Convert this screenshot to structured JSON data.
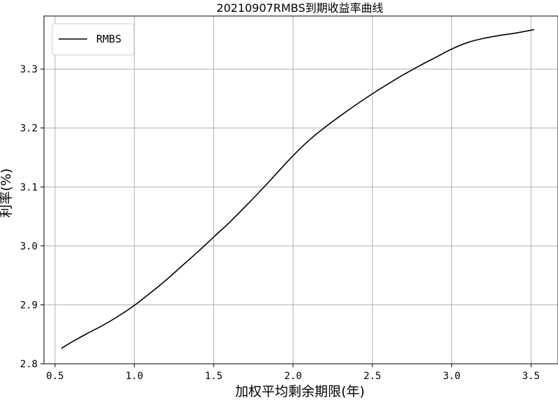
{
  "chart_data": {
    "type": "line",
    "title": "20210907RMBS到期收益率曲线",
    "xlabel": "加权平均剩余期限(年)",
    "ylabel": "利率(%)",
    "xlim": [
      0.43,
      3.67
    ],
    "ylim": [
      2.8,
      3.39
    ],
    "xticks": [
      "0.5",
      "1.0",
      "1.5",
      "2.0",
      "2.5",
      "3.0",
      "3.5"
    ],
    "yticks": [
      "2.8",
      "2.9",
      "3.0",
      "3.1",
      "3.2",
      "3.3"
    ],
    "grid": true,
    "legend_position": "top-left",
    "series": [
      {
        "name": "RMBS",
        "color": "#000000",
        "x": [
          0.54,
          0.6,
          0.7,
          0.8,
          0.9,
          1.0,
          1.1,
          1.2,
          1.3,
          1.4,
          1.5,
          1.6,
          1.7,
          1.8,
          1.9,
          2.0,
          2.1,
          2.2,
          2.3,
          2.4,
          2.5,
          2.6,
          2.7,
          2.8,
          2.9,
          3.0,
          3.1,
          3.2,
          3.3,
          3.4,
          3.52
        ],
        "y": [
          2.826,
          2.836,
          2.851,
          2.865,
          2.881,
          2.899,
          2.92,
          2.942,
          2.966,
          2.99,
          3.015,
          3.04,
          3.067,
          3.095,
          3.124,
          3.153,
          3.179,
          3.201,
          3.221,
          3.24,
          3.258,
          3.275,
          3.291,
          3.306,
          3.32,
          3.334,
          3.345,
          3.352,
          3.357,
          3.361,
          3.367
        ]
      }
    ]
  }
}
